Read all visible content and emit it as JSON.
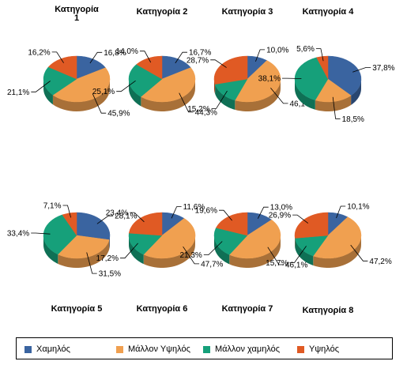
{
  "chart_data": {
    "type": "pie",
    "series": [
      {
        "name": "Χαμηλός",
        "color": "#3A64A0"
      },
      {
        "name": "Μάλλον Υψηλός",
        "color": "#F0A050"
      },
      {
        "name": "Μάλλον χαμηλός",
        "color": "#16A07A"
      },
      {
        "name": "Υψηλός",
        "color": "#E05A24"
      }
    ],
    "charts": [
      {
        "title": "Κατηγορία\n1",
        "values": [
          16.8,
          45.9,
          21.1,
          16.2
        ],
        "labels": [
          "16,8%",
          "45,9%",
          "21,1%",
          "16,2%"
        ]
      },
      {
        "title": "Κατηγορία 2",
        "values": [
          16.7,
          44.3,
          25.1,
          14.0
        ],
        "labels": [
          "16,7%",
          "44,3%",
          "25,1%",
          "14,0%"
        ]
      },
      {
        "title": "Κατηγορία 3",
        "values": [
          10.0,
          46.1,
          15.2,
          28.7
        ],
        "labels": [
          "10,0%",
          "46,1%",
          "15,2%",
          "28,7%"
        ]
      },
      {
        "title": "Κατηγορία 4",
        "values": [
          37.8,
          18.5,
          38.1,
          5.6
        ],
        "labels": [
          "37,8%",
          "18,5%",
          "38,1%",
          "5,6%"
        ]
      },
      {
        "title": "Κατηγορία 5",
        "values": [
          28.1,
          31.5,
          33.4,
          7.1
        ],
        "labels": [
          "28,1%",
          "31,5%",
          "33,4%",
          "7,1%"
        ]
      },
      {
        "title": "Κατηγορία 6",
        "values": [
          11.6,
          47.7,
          17.2,
          23.4
        ],
        "labels": [
          "11,6%",
          "47,7%",
          "17,2%",
          "23,4%"
        ]
      },
      {
        "title": "Κατηγορία 7",
        "values": [
          13.0,
          46.1,
          21.3,
          19.6
        ],
        "labels": [
          "13,0%",
          "46,1%",
          "21,3%",
          "19,6%"
        ]
      },
      {
        "title": "Κατηγορία 8",
        "values": [
          10.1,
          47.2,
          15.7,
          26.9
        ],
        "labels": [
          "10,1%",
          "47,2%",
          "15,7%",
          "26,9%"
        ]
      }
    ],
    "legend_position": "bottom"
  }
}
